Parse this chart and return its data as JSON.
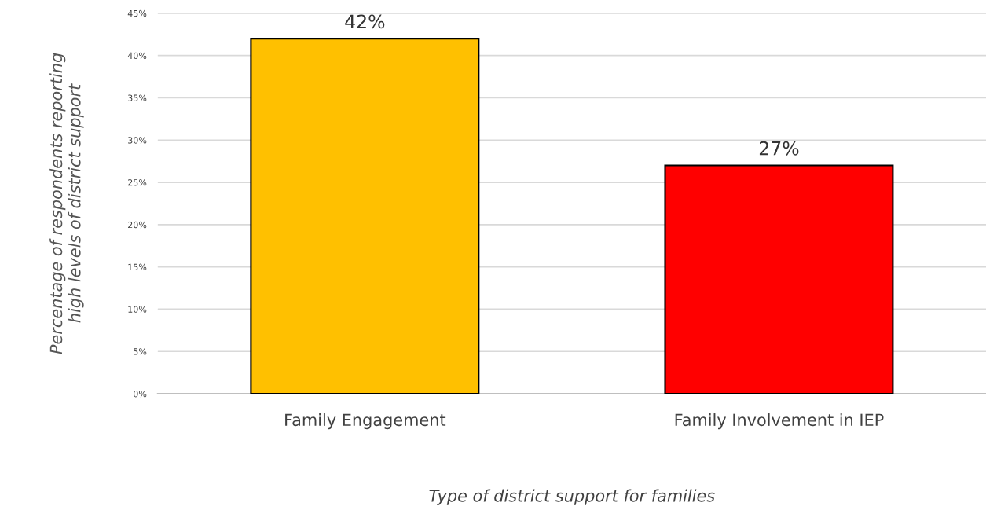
{
  "chart_data": {
    "type": "bar",
    "categories": [
      "Family Engagement",
      "Family Involvement in IEP"
    ],
    "values": [
      42,
      27
    ],
    "colors": [
      "#ffc000",
      "#ff0000"
    ],
    "value_labels": [
      "42%",
      "27%"
    ],
    "xlabel": "Type of district support for families",
    "ylabel": "Percentage of respondents reporting\nhigh levels of district support",
    "ylim": [
      0,
      45
    ],
    "yticks": [
      {
        "value": 0,
        "label": "0%"
      },
      {
        "value": 5,
        "label": "5%"
      },
      {
        "value": 10,
        "label": "10%"
      },
      {
        "value": 15,
        "label": "15%"
      },
      {
        "value": 20,
        "label": "20%"
      },
      {
        "value": 25,
        "label": "25%"
      },
      {
        "value": 30,
        "label": "30%"
      },
      {
        "value": 35,
        "label": "35%"
      },
      {
        "value": 40,
        "label": "40%"
      },
      {
        "value": 45,
        "label": "45%"
      }
    ],
    "grid": "y"
  }
}
